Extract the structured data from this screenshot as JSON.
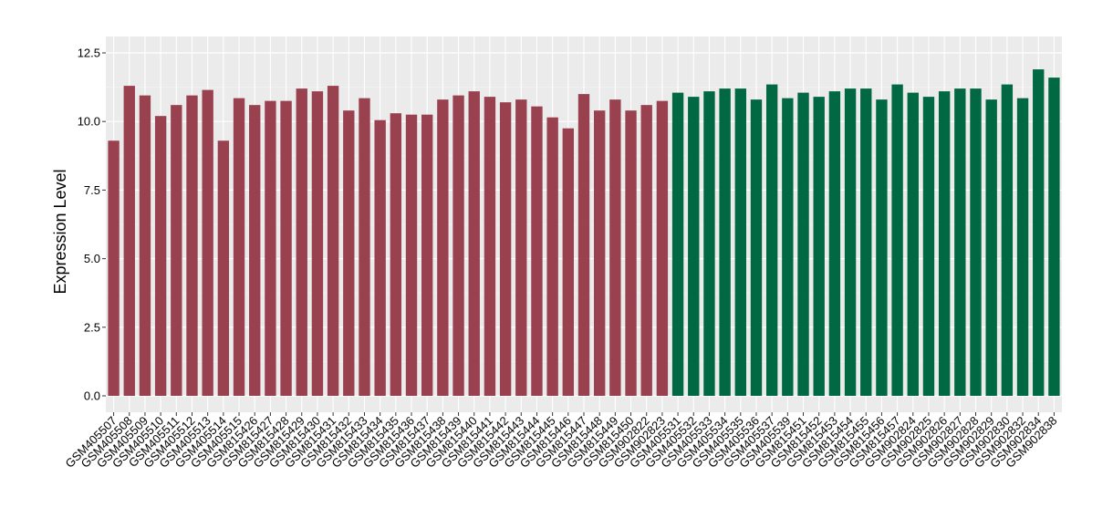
{
  "chart_data": {
    "type": "bar",
    "title": "",
    "xlabel": "",
    "ylabel": "Expression Level",
    "ylim": [
      -0.6,
      12.8
    ],
    "yticks": [
      "0.0",
      "2.5",
      "5.0",
      "7.5",
      "10.0",
      "12.5"
    ],
    "grid": true,
    "background": "#EBEBEB",
    "group_colors": [
      "#9A4150",
      "#006843"
    ],
    "categories": [
      "GSM405507",
      "GSM405508",
      "GSM405509",
      "GSM405510",
      "GSM405511",
      "GSM405512",
      "GSM405513",
      "GSM405514",
      "GSM405515",
      "GSM815426",
      "GSM815427",
      "GSM815428",
      "GSM815429",
      "GSM815430",
      "GSM815431",
      "GSM815432",
      "GSM815433",
      "GSM815434",
      "GSM815435",
      "GSM815436",
      "GSM815437",
      "GSM815438",
      "GSM815439",
      "GSM815440",
      "GSM815441",
      "GSM815442",
      "GSM815443",
      "GSM815444",
      "GSM815445",
      "GSM815446",
      "GSM815447",
      "GSM815448",
      "GSM815449",
      "GSM815450",
      "GSM902822",
      "GSM902823",
      "GSM405531",
      "GSM405532",
      "GSM405533",
      "GSM405534",
      "GSM405535",
      "GSM405536",
      "GSM405537",
      "GSM405539",
      "GSM815451",
      "GSM815452",
      "GSM815453",
      "GSM815454",
      "GSM815455",
      "GSM815456",
      "GSM815457",
      "GSM902824",
      "GSM902825",
      "GSM902826",
      "GSM902827",
      "GSM902828",
      "GSM902829",
      "GSM902830",
      "GSM902832",
      "GSM902834",
      "GSM902838"
    ],
    "values": [
      9.3,
      11.3,
      10.95,
      10.2,
      10.6,
      10.95,
      11.15,
      9.3,
      10.85,
      10.6,
      10.75,
      10.75,
      11.2,
      11.1,
      11.3,
      10.4,
      10.85,
      10.05,
      10.3,
      10.25,
      10.25,
      10.8,
      10.95,
      11.1,
      10.9,
      10.7,
      10.8,
      10.55,
      10.15,
      9.75,
      11.0,
      10.4,
      10.8,
      10.4,
      10.6,
      10.75,
      11.05,
      10.9,
      11.1,
      11.2,
      11.2,
      10.8,
      11.35,
      10.85,
      11.05,
      10.9,
      11.1,
      11.2,
      11.2,
      10.8,
      11.35,
      11.05,
      10.9,
      11.1,
      11.2,
      11.2,
      10.8,
      11.35,
      10.85,
      11.9,
      11.6
    ],
    "groups": [
      0,
      0,
      0,
      0,
      0,
      0,
      0,
      0,
      0,
      0,
      0,
      0,
      0,
      0,
      0,
      0,
      0,
      0,
      0,
      0,
      0,
      0,
      0,
      0,
      0,
      0,
      0,
      0,
      0,
      0,
      0,
      0,
      0,
      0,
      0,
      0,
      1,
      1,
      1,
      1,
      1,
      1,
      1,
      1,
      1,
      1,
      1,
      1,
      1,
      1,
      1,
      1,
      1,
      1,
      1,
      1,
      1,
      1,
      1,
      1,
      1
    ]
  }
}
